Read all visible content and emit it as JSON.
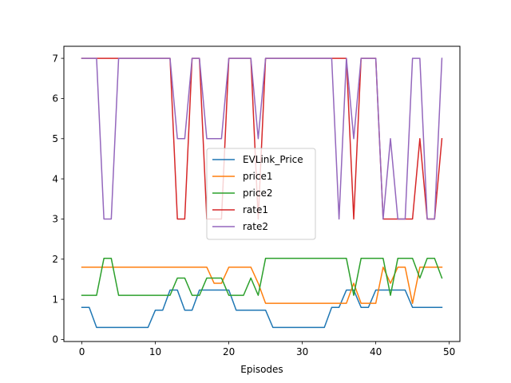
{
  "chart_data": {
    "type": "line",
    "title": "",
    "xlabel": "Episodes",
    "ylabel": "",
    "xlim": [
      -2.45,
      51.45
    ],
    "ylim": [
      -0.05,
      7.3
    ],
    "grid": false,
    "legend_position": "center",
    "x_ticks": [
      0,
      10,
      20,
      30,
      40,
      50
    ],
    "y_ticks": [
      0,
      1,
      2,
      3,
      4,
      5,
      6,
      7
    ],
    "x_tick_labels": [
      "0",
      "10",
      "20",
      "30",
      "40",
      "50"
    ],
    "y_tick_labels": [
      "0",
      "1",
      "2",
      "3",
      "4",
      "5",
      "6",
      "7"
    ],
    "x": [
      0,
      1,
      2,
      3,
      4,
      5,
      6,
      7,
      8,
      9,
      10,
      11,
      12,
      13,
      14,
      15,
      16,
      17,
      18,
      19,
      20,
      21,
      22,
      23,
      24,
      25,
      26,
      27,
      28,
      29,
      30,
      31,
      32,
      33,
      34,
      35,
      36,
      37,
      38,
      39,
      40,
      41,
      42,
      43,
      44,
      45,
      46,
      47,
      48,
      49
    ],
    "series": [
      {
        "name": "EVLink_Price",
        "color": "#1f77b4",
        "values": [
          0.8,
          0.8,
          0.3,
          0.3,
          0.3,
          0.3,
          0.3,
          0.3,
          0.3,
          0.3,
          0.73,
          0.73,
          1.23,
          1.23,
          0.73,
          0.73,
          1.23,
          1.23,
          1.23,
          1.23,
          1.23,
          0.73,
          0.73,
          0.73,
          0.73,
          0.73,
          0.3,
          0.3,
          0.3,
          0.3,
          0.3,
          0.3,
          0.3,
          0.3,
          0.8,
          0.8,
          1.23,
          1.23,
          0.8,
          0.8,
          1.23,
          1.23,
          1.23,
          1.23,
          1.23,
          0.8,
          0.8,
          0.8,
          0.8,
          0.8
        ]
      },
      {
        "name": "price1",
        "color": "#ff7f0e",
        "values": [
          1.8,
          1.8,
          1.8,
          1.8,
          1.8,
          1.8,
          1.8,
          1.8,
          1.8,
          1.8,
          1.8,
          1.8,
          1.8,
          1.8,
          1.8,
          1.8,
          1.8,
          1.8,
          1.4,
          1.4,
          1.8,
          1.8,
          1.8,
          1.8,
          1.4,
          0.9,
          0.9,
          0.9,
          0.9,
          0.9,
          0.9,
          0.9,
          0.9,
          0.9,
          0.9,
          0.9,
          0.9,
          1.4,
          0.9,
          0.9,
          0.9,
          1.8,
          1.4,
          1.8,
          1.8,
          0.9,
          1.8,
          1.8,
          1.8,
          1.8
        ]
      },
      {
        "name": "price2",
        "color": "#2ca02c",
        "values": [
          1.1,
          1.1,
          1.1,
          2.02,
          2.02,
          1.1,
          1.1,
          1.1,
          1.1,
          1.1,
          1.1,
          1.1,
          1.1,
          1.53,
          1.53,
          1.1,
          1.1,
          1.53,
          1.53,
          1.53,
          1.1,
          1.1,
          1.1,
          1.53,
          1.1,
          2.02,
          2.02,
          2.02,
          2.02,
          2.02,
          2.02,
          2.02,
          2.02,
          2.02,
          2.02,
          2.02,
          2.02,
          1.1,
          2.02,
          2.02,
          2.02,
          2.02,
          1.1,
          2.02,
          2.02,
          2.02,
          1.53,
          2.02,
          2.02,
          1.53
        ]
      },
      {
        "name": "rate1",
        "color": "#d62728",
        "values": [
          7,
          7,
          7,
          7,
          7,
          7,
          7,
          7,
          7,
          7,
          7,
          7,
          7,
          3,
          3,
          7,
          7,
          3,
          3,
          3,
          7,
          7,
          7,
          7,
          3,
          7,
          7,
          7,
          7,
          7,
          7,
          7,
          7,
          7,
          7,
          7,
          7,
          3,
          7,
          7,
          7,
          3,
          3,
          3,
          3,
          3,
          5,
          3,
          3,
          5
        ]
      },
      {
        "name": "rate2",
        "color": "#9467bd",
        "values": [
          7,
          7,
          7,
          3,
          3,
          7,
          7,
          7,
          7,
          7,
          7,
          7,
          7,
          5,
          5,
          7,
          7,
          5,
          5,
          5,
          7,
          7,
          7,
          7,
          5,
          7,
          7,
          7,
          7,
          7,
          7,
          7,
          7,
          7,
          7,
          3,
          7,
          5,
          7,
          7,
          7,
          3,
          5,
          3,
          3,
          7,
          7,
          3,
          3,
          7
        ]
      }
    ]
  }
}
